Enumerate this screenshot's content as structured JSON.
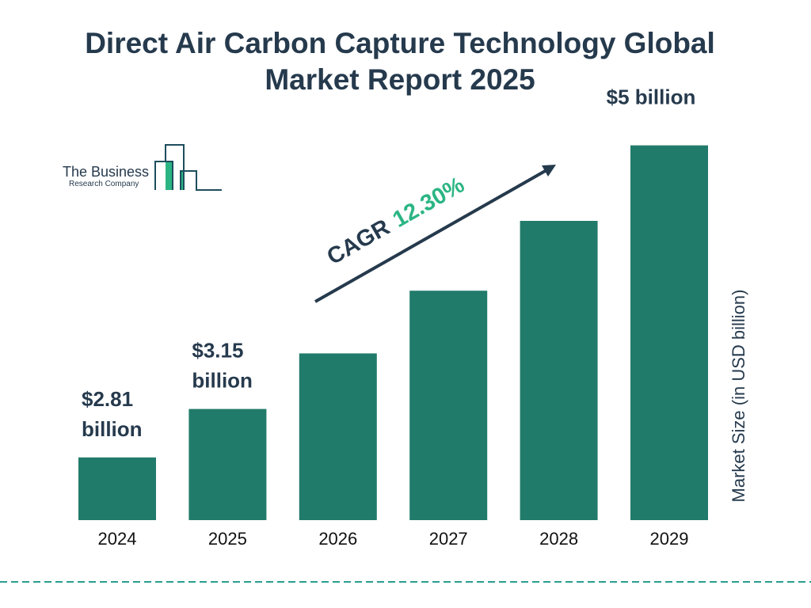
{
  "title": "Direct Air Carbon Capture Technology Global Market Report 2025",
  "title_lines": [
    "Direct Air Carbon Capture Technology Global",
    "Market Report 2025"
  ],
  "logo": {
    "line1": "The Business",
    "line2": "Research Company"
  },
  "cagr": {
    "label": "CAGR",
    "value": "12.30%"
  },
  "colors": {
    "bar": "#217b6a",
    "text": "#263a4d",
    "accent": "#2bb584",
    "dash": "#2a9d8f"
  },
  "chart_data": {
    "type": "bar",
    "title": "Direct Air Carbon Capture Technology Global Market Report 2025",
    "ylabel": "Market Size (in USD billion)",
    "xlabel": "",
    "categories": [
      "2024",
      "2025",
      "2026",
      "2027",
      "2028",
      "2029"
    ],
    "values": [
      2.81,
      3.15,
      3.54,
      3.98,
      4.47,
      5.0
    ],
    "data_labels": [
      [
        "$2.81",
        "billion"
      ],
      [
        "$3.15",
        "billion"
      ],
      null,
      null,
      null,
      [
        "$5 billion"
      ]
    ],
    "ylim": [
      2.37,
      5.0
    ],
    "grid": false
  }
}
